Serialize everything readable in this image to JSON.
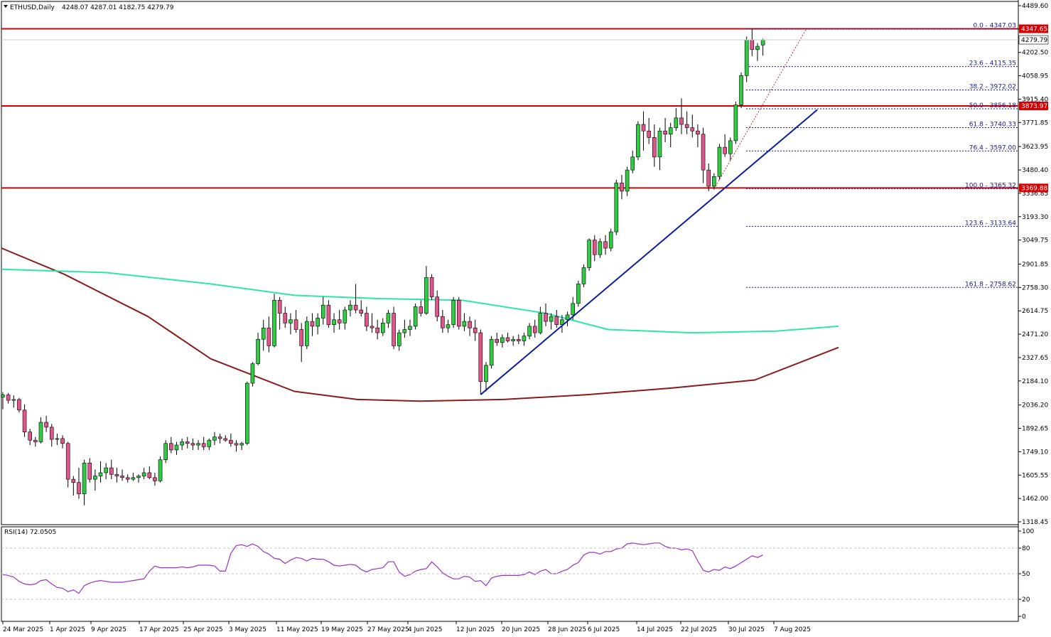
{
  "header": {
    "symbol": "ETHUSD,Daily",
    "ohlc": "4248.07 4287.01 4182.75 4279.79"
  },
  "rsi_panel": {
    "label": "RSI(14) 72.0505",
    "levels": [
      "100",
      "80",
      "50",
      "20",
      "0"
    ]
  },
  "colors": {
    "bull": "#2ecc40",
    "bear": "#e0558a",
    "wick": "#000000",
    "ma_slow": "#8b1a1a",
    "ma_fast": "#2ee6a8",
    "trendline": "#0a1fa0",
    "resistance": "#d40000",
    "fib": "#1a1a8c",
    "rsi": "#9b30c8"
  },
  "chart_data": {
    "type": "candlestick",
    "title": "ETHUSD,Daily",
    "ylim": [
      1318.45,
      4489.6
    ],
    "y_ticks": [
      "4489.60",
      "4346.05",
      "4202.50",
      "4058.95",
      "3915.40",
      "3771.85",
      "3623.95",
      "3480.40",
      "3336.85",
      "3193.30",
      "3049.75",
      "2901.85",
      "2758.30",
      "2614.75",
      "2471.20",
      "2327.65",
      "2184.10",
      "2036.20",
      "1892.65",
      "1749.10",
      "1605.55",
      "1462.00",
      "1318.45"
    ],
    "x_labels": [
      "24 Mar 2025",
      "1 Apr 2025",
      "9 Apr 2025",
      "17 Apr 2025",
      "25 Apr 2025",
      "3 May 2025",
      "11 May 2025",
      "19 May 2025",
      "27 May 2025",
      "4 Jun 2025",
      "12 Jun 2025",
      "20 Jun 2025",
      "28 Jun 2025",
      "6 Jul 2025",
      "14 Jul 2025",
      "22 Jul 2025",
      "30 Jul 2025",
      "7 Aug 2025"
    ],
    "candles": [
      [
        2085,
        2115,
        2010,
        2098
      ],
      [
        2098,
        2110,
        2045,
        2065
      ],
      [
        2065,
        2095,
        2020,
        2070
      ],
      [
        2070,
        2080,
        1990,
        2005
      ],
      [
        2005,
        2040,
        1840,
        1870
      ],
      [
        1870,
        1890,
        1790,
        1820
      ],
      [
        1820,
        1840,
        1780,
        1810
      ],
      [
        1810,
        1960,
        1800,
        1930
      ],
      [
        1930,
        1970,
        1870,
        1900
      ],
      [
        1900,
        1920,
        1780,
        1825
      ],
      [
        1825,
        1860,
        1790,
        1830
      ],
      [
        1830,
        1850,
        1770,
        1800
      ],
      [
        1800,
        1810,
        1530,
        1580
      ],
      [
        1580,
        1600,
        1480,
        1560
      ],
      [
        1560,
        1650,
        1460,
        1490
      ],
      [
        1490,
        1700,
        1420,
        1680
      ],
      [
        1680,
        1710,
        1560,
        1580
      ],
      [
        1580,
        1640,
        1510,
        1600
      ],
      [
        1600,
        1690,
        1560,
        1620
      ],
      [
        1620,
        1680,
        1580,
        1650
      ],
      [
        1650,
        1700,
        1580,
        1610
      ],
      [
        1610,
        1650,
        1560,
        1600
      ],
      [
        1600,
        1640,
        1570,
        1590
      ],
      [
        1590,
        1610,
        1560,
        1580
      ],
      [
        1580,
        1620,
        1570,
        1590
      ],
      [
        1590,
        1610,
        1560,
        1600
      ],
      [
        1600,
        1650,
        1580,
        1620
      ],
      [
        1620,
        1660,
        1580,
        1590
      ],
      [
        1590,
        1620,
        1540,
        1570
      ],
      [
        1570,
        1720,
        1560,
        1700
      ],
      [
        1700,
        1820,
        1680,
        1800
      ],
      [
        1800,
        1840,
        1740,
        1760
      ],
      [
        1760,
        1810,
        1730,
        1790
      ],
      [
        1790,
        1830,
        1760,
        1810
      ],
      [
        1810,
        1840,
        1770,
        1800
      ],
      [
        1800,
        1830,
        1760,
        1790
      ],
      [
        1790,
        1820,
        1760,
        1800
      ],
      [
        1800,
        1840,
        1760,
        1780
      ],
      [
        1780,
        1830,
        1760,
        1820
      ],
      [
        1820,
        1870,
        1790,
        1840
      ],
      [
        1840,
        1860,
        1800,
        1830
      ],
      [
        1830,
        1850,
        1810,
        1820
      ],
      [
        1820,
        1860,
        1780,
        1800
      ],
      [
        1800,
        1820,
        1750,
        1790
      ],
      [
        1790,
        1810,
        1760,
        1800
      ],
      [
        1800,
        2180,
        1790,
        2170
      ],
      [
        2170,
        2300,
        2150,
        2290
      ],
      [
        2290,
        2480,
        2280,
        2440
      ],
      [
        2440,
        2560,
        2370,
        2510
      ],
      [
        2510,
        2580,
        2360,
        2400
      ],
      [
        2400,
        2720,
        2390,
        2680
      ],
      [
        2680,
        2700,
        2500,
        2600
      ],
      [
        2600,
        2640,
        2510,
        2540
      ],
      [
        2540,
        2600,
        2470,
        2560
      ],
      [
        2560,
        2620,
        2480,
        2500
      ],
      [
        2500,
        2540,
        2300,
        2400
      ],
      [
        2400,
        2580,
        2380,
        2550
      ],
      [
        2550,
        2600,
        2460,
        2520
      ],
      [
        2520,
        2600,
        2470,
        2570
      ],
      [
        2570,
        2700,
        2530,
        2650
      ],
      [
        2650,
        2680,
        2510,
        2530
      ],
      [
        2530,
        2600,
        2480,
        2560
      ],
      [
        2560,
        2620,
        2500,
        2540
      ],
      [
        2540,
        2640,
        2500,
        2620
      ],
      [
        2620,
        2680,
        2580,
        2650
      ],
      [
        2650,
        2780,
        2600,
        2620
      ],
      [
        2620,
        2680,
        2580,
        2600
      ],
      [
        2600,
        2640,
        2490,
        2520
      ],
      [
        2520,
        2600,
        2480,
        2510
      ],
      [
        2510,
        2560,
        2440,
        2480
      ],
      [
        2480,
        2570,
        2460,
        2540
      ],
      [
        2540,
        2620,
        2510,
        2600
      ],
      [
        2600,
        2640,
        2380,
        2400
      ],
      [
        2400,
        2500,
        2370,
        2480
      ],
      [
        2480,
        2560,
        2450,
        2500
      ],
      [
        2500,
        2560,
        2460,
        2520
      ],
      [
        2520,
        2660,
        2500,
        2640
      ],
      [
        2640,
        2680,
        2580,
        2600
      ],
      [
        2600,
        2890,
        2590,
        2820
      ],
      [
        2820,
        2840,
        2680,
        2700
      ],
      [
        2700,
        2740,
        2550,
        2580
      ],
      [
        2580,
        2620,
        2480,
        2510
      ],
      [
        2510,
        2560,
        2480,
        2530
      ],
      [
        2530,
        2700,
        2510,
        2680
      ],
      [
        2680,
        2700,
        2500,
        2520
      ],
      [
        2520,
        2600,
        2490,
        2550
      ],
      [
        2550,
        2580,
        2460,
        2510
      ],
      [
        2510,
        2560,
        2430,
        2480
      ],
      [
        2480,
        2500,
        2100,
        2180
      ],
      [
        2180,
        2300,
        2120,
        2280
      ],
      [
        2280,
        2460,
        2260,
        2440
      ],
      [
        2440,
        2480,
        2400,
        2420
      ],
      [
        2420,
        2470,
        2390,
        2450
      ],
      [
        2450,
        2480,
        2420,
        2430
      ],
      [
        2430,
        2460,
        2400,
        2440
      ],
      [
        2440,
        2470,
        2410,
        2430
      ],
      [
        2430,
        2480,
        2400,
        2460
      ],
      [
        2460,
        2540,
        2440,
        2520
      ],
      [
        2520,
        2560,
        2450,
        2480
      ],
      [
        2480,
        2640,
        2470,
        2600
      ],
      [
        2600,
        2660,
        2520,
        2550
      ],
      [
        2550,
        2600,
        2500,
        2580
      ],
      [
        2580,
        2620,
        2510,
        2530
      ],
      [
        2530,
        2590,
        2480,
        2560
      ],
      [
        2560,
        2610,
        2520,
        2590
      ],
      [
        2590,
        2700,
        2560,
        2660
      ],
      [
        2660,
        2800,
        2640,
        2780
      ],
      [
        2780,
        2900,
        2760,
        2880
      ],
      [
        2880,
        3060,
        2860,
        3050
      ],
      [
        3050,
        3080,
        2920,
        2960
      ],
      [
        2960,
        3060,
        2940,
        3040
      ],
      [
        3040,
        3080,
        2960,
        3000
      ],
      [
        3000,
        3120,
        2980,
        3100
      ],
      [
        3100,
        3420,
        3080,
        3400
      ],
      [
        3400,
        3450,
        3300,
        3350
      ],
      [
        3350,
        3500,
        3320,
        3480
      ],
      [
        3480,
        3600,
        3460,
        3560
      ],
      [
        3560,
        3780,
        3540,
        3760
      ],
      [
        3760,
        3840,
        3600,
        3720
      ],
      [
        3720,
        3800,
        3640,
        3680
      ],
      [
        3680,
        3760,
        3500,
        3560
      ],
      [
        3560,
        3740,
        3480,
        3720
      ],
      [
        3720,
        3800,
        3650,
        3700
      ],
      [
        3700,
        3770,
        3620,
        3740
      ],
      [
        3740,
        3860,
        3720,
        3800
      ],
      [
        3800,
        3920,
        3700,
        3760
      ],
      [
        3760,
        3840,
        3700,
        3740
      ],
      [
        3740,
        3820,
        3680,
        3720
      ],
      [
        3720,
        3760,
        3620,
        3700
      ],
      [
        3700,
        3740,
        3400,
        3480
      ],
      [
        3480,
        3520,
        3350,
        3380
      ],
      [
        3380,
        3460,
        3360,
        3440
      ],
      [
        3440,
        3640,
        3420,
        3620
      ],
      [
        3620,
        3700,
        3560,
        3580
      ],
      [
        3580,
        3680,
        3540,
        3660
      ],
      [
        3660,
        3900,
        3640,
        3880
      ],
      [
        3880,
        4080,
        3860,
        4060
      ],
      [
        4060,
        4300,
        4020,
        4280
      ],
      [
        4280,
        4347,
        4180,
        4220
      ],
      [
        4220,
        4260,
        4150,
        4240
      ],
      [
        4248.07,
        4287.01,
        4182.75,
        4279.79
      ]
    ],
    "moving_averages": [
      {
        "x_frac": [
          0,
          0.06,
          0.14,
          0.2,
          0.28,
          0.34,
          0.4,
          0.48,
          0.56,
          0.64,
          0.72,
          0.8
        ],
        "values": [
          3000,
          2840,
          2580,
          2320,
          2120,
          2070,
          2060,
          2070,
          2100,
          2140,
          2190,
          2390
        ]
      },
      {
        "x_frac": [
          0,
          0.1,
          0.2,
          0.28,
          0.36,
          0.44,
          0.52,
          0.58,
          0.66,
          0.74,
          0.8
        ],
        "values": [
          2870,
          2850,
          2780,
          2710,
          2690,
          2680,
          2600,
          2500,
          2480,
          2490,
          2520
        ]
      }
    ],
    "horizontal_levels": [
      "4347.65",
      "3873.97",
      "3369.88"
    ],
    "fib_levels": [
      {
        "label": "0.0 - 4347.03",
        "value": 4347.03
      },
      {
        "label": "23.6 - 4115.35",
        "value": 4115.35
      },
      {
        "label": "38.2 - 3972.02",
        "value": 3972.02
      },
      {
        "label": "50.0 - 3856.18",
        "value": 3856.18
      },
      {
        "label": "61.8 - 3740.33",
        "value": 3740.33
      },
      {
        "label": "76.4 - 3597.00",
        "value": 3597.0
      },
      {
        "label": "100.0 - 3365.32",
        "value": 3365.32
      },
      {
        "label": "123.6 - 3133.64",
        "value": 3133.64
      },
      {
        "label": "161.8 - 2758.62",
        "value": 2758.62
      }
    ],
    "current_price": "4279.79",
    "trendline": {
      "from": {
        "date_index": 88,
        "value": 2100
      },
      "to": {
        "date_index": 150,
        "value": 3850
      }
    },
    "rsi": {
      "ylim": [
        0,
        100
      ],
      "values": [
        49,
        48,
        46,
        41,
        38,
        37,
        38,
        42,
        43,
        38,
        34,
        33,
        29,
        31,
        27,
        36,
        39,
        41,
        42,
        41,
        40,
        40,
        40,
        41,
        42,
        43,
        44,
        53,
        59,
        57,
        57,
        57,
        57,
        58,
        57,
        58,
        60,
        60,
        60,
        59,
        53,
        53,
        74,
        83,
        84,
        82,
        85,
        82,
        76,
        73,
        68,
        67,
        62,
        66,
        69,
        68,
        65,
        68,
        67,
        67,
        64,
        60,
        59,
        60,
        61,
        60,
        55,
        52,
        55,
        56,
        57,
        64,
        64,
        52,
        47,
        49,
        53,
        55,
        56,
        64,
        58,
        51,
        47,
        44,
        44,
        47,
        46,
        41,
        42,
        36,
        45,
        47,
        48,
        48,
        48,
        48,
        49,
        52,
        49,
        53,
        55,
        50,
        50,
        53,
        55,
        60,
        63,
        72,
        75,
        75,
        73,
        76,
        76,
        79,
        80,
        85,
        86,
        85,
        84,
        85,
        86,
        86,
        82,
        80,
        80,
        78,
        79,
        77,
        65,
        54,
        52,
        55,
        54,
        58,
        56,
        59,
        63,
        67,
        71,
        69,
        72
      ]
    }
  }
}
